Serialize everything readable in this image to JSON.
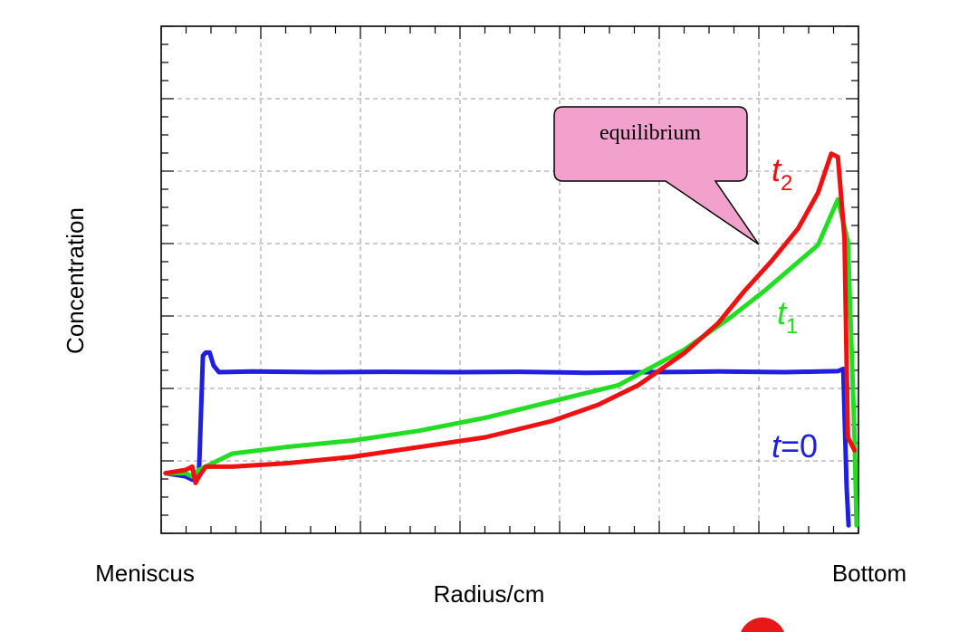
{
  "chart_data": {
    "type": "line",
    "xlabel": "Radius/cm",
    "ylabel": "Concentration",
    "x_end_labels": {
      "left": "Meniscus",
      "right": "Bottom"
    },
    "xlim": [
      0,
      100
    ],
    "ylim": [
      0,
      100
    ],
    "grid": true,
    "annotation": "equilibrium",
    "series": [
      {
        "name": "t=0",
        "color": "#1f1fe0",
        "points": [
          [
            -3,
            14
          ],
          [
            0,
            13
          ],
          [
            1,
            12
          ],
          [
            2,
            14
          ],
          [
            2.6,
            50
          ],
          [
            3,
            51
          ],
          [
            3.6,
            51
          ],
          [
            4.2,
            47
          ],
          [
            5,
            45
          ],
          [
            10,
            45.2
          ],
          [
            20,
            45
          ],
          [
            30,
            45.1
          ],
          [
            40,
            45
          ],
          [
            50,
            45.1
          ],
          [
            60,
            44.8
          ],
          [
            70,
            45
          ],
          [
            80,
            45.2
          ],
          [
            90,
            45
          ],
          [
            98,
            45.3
          ],
          [
            98.8,
            46
          ],
          [
            99.3,
            10
          ],
          [
            99.6,
            -2
          ]
        ]
      },
      {
        "name": "t1",
        "color": "#22dd22",
        "points": [
          [
            -3,
            14
          ],
          [
            0,
            14
          ],
          [
            1,
            13
          ],
          [
            2,
            15
          ],
          [
            4,
            17
          ],
          [
            7,
            20
          ],
          [
            15,
            22
          ],
          [
            25,
            24
          ],
          [
            35,
            27
          ],
          [
            45,
            31
          ],
          [
            55,
            36
          ],
          [
            65,
            41
          ],
          [
            75,
            52
          ],
          [
            82,
            62
          ],
          [
            87,
            70
          ],
          [
            91,
            77
          ],
          [
            95,
            84
          ],
          [
            98,
            98
          ],
          [
            99.5,
            85
          ],
          [
            100.5,
            25
          ],
          [
            100.8,
            -2
          ]
        ]
      },
      {
        "name": "t2",
        "color": "#ee1111",
        "points": [
          [
            -3,
            14
          ],
          [
            0,
            15
          ],
          [
            1,
            16
          ],
          [
            1.5,
            11
          ],
          [
            2,
            13
          ],
          [
            3,
            16
          ],
          [
            7,
            16
          ],
          [
            15,
            17
          ],
          [
            25,
            19
          ],
          [
            35,
            22
          ],
          [
            45,
            25
          ],
          [
            55,
            30
          ],
          [
            62,
            35
          ],
          [
            68,
            41
          ],
          [
            75,
            51
          ],
          [
            80,
            60
          ],
          [
            84,
            70
          ],
          [
            88,
            79
          ],
          [
            92,
            89
          ],
          [
            95,
            100
          ],
          [
            97,
            112
          ],
          [
            98,
            111
          ],
          [
            99,
            86
          ],
          [
            99.5,
            25
          ],
          [
            100.5,
            21
          ]
        ]
      }
    ]
  },
  "series_labels": {
    "t2": {
      "base": "t",
      "sub": "2"
    },
    "t1": {
      "base": "t",
      "sub": "1"
    },
    "t0": {
      "base": "t",
      "rest": "=0"
    }
  }
}
